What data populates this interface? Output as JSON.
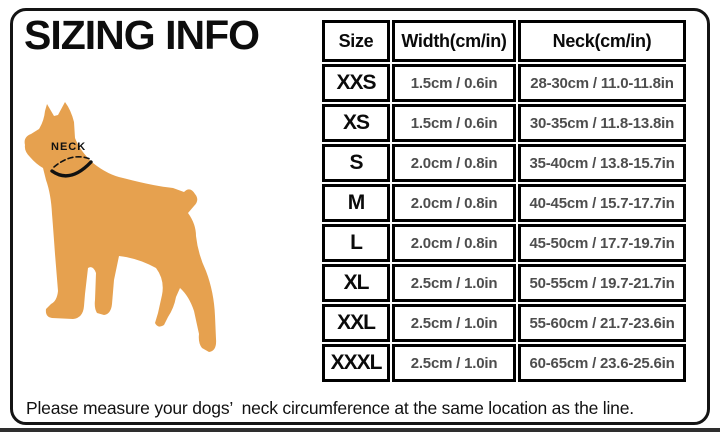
{
  "page": {
    "title": "SIZING INFO",
    "footer_note": "Please measure your dogs’ neck circumference at the same location as the line."
  },
  "diagram": {
    "neck_label": "NECK"
  },
  "table": {
    "headers": [
      "Size",
      "Width(cm/in)",
      "Neck(cm/in)"
    ],
    "rows": [
      {
        "size": "XXS",
        "width": "1.5cm / 0.6in",
        "neck": "28-30cm / 11.0-11.8in"
      },
      {
        "size": "XS",
        "width": "1.5cm / 0.6in",
        "neck": "30-35cm / 11.8-13.8in"
      },
      {
        "size": "S",
        "width": "2.0cm / 0.8in",
        "neck": "35-40cm / 13.8-15.7in"
      },
      {
        "size": "M",
        "width": "2.0cm / 0.8in",
        "neck": "40-45cm / 15.7-17.7in"
      },
      {
        "size": "L",
        "width": "2.0cm / 0.8in",
        "neck": "45-50cm / 17.7-19.7in"
      },
      {
        "size": "XL",
        "width": "2.5cm / 1.0in",
        "neck": "50-55cm / 19.7-21.7in"
      },
      {
        "size": "XXL",
        "width": "2.5cm / 1.0in",
        "neck": "55-60cm / 21.7-23.6in"
      },
      {
        "size": "XXXL",
        "width": "2.5cm / 1.0in",
        "neck": "60-65cm / 23.6-25.6in"
      }
    ]
  },
  "colors": {
    "dog": "#E6A14F",
    "border": "#141414",
    "value_text": "#4d4d4d"
  }
}
